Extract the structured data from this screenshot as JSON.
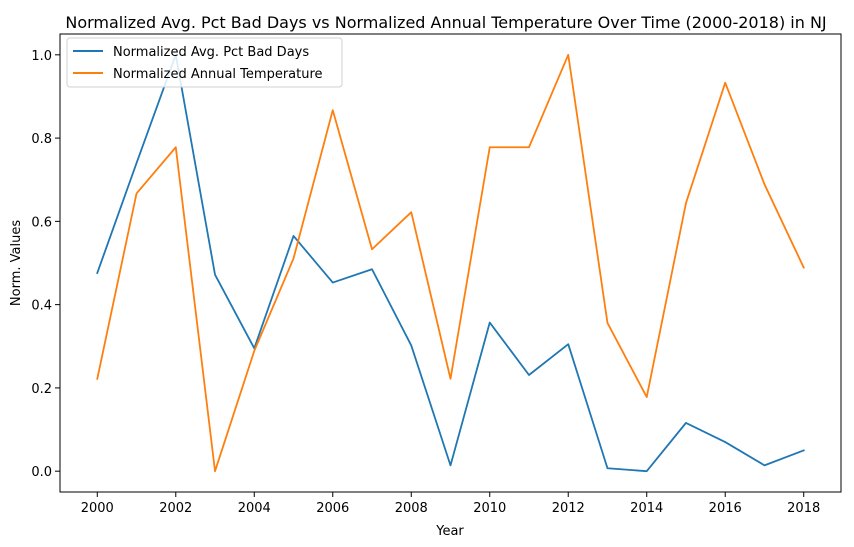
{
  "chart_data": {
    "type": "line",
    "title": "Normalized Avg. Pct Bad Days vs Normalized Annual Temperature Over Time (2000-2018) in NJ",
    "xlabel": "Year",
    "ylabel": "Norm. Values",
    "x": [
      2000,
      2001,
      2002,
      2003,
      2004,
      2005,
      2006,
      2007,
      2008,
      2009,
      2010,
      2011,
      2012,
      2013,
      2014,
      2015,
      2016,
      2017,
      2018
    ],
    "xlim": [
      1999.05,
      2018.95
    ],
    "ylim": [
      -0.05,
      1.05
    ],
    "xticks": [
      "2000",
      "2002",
      "2004",
      "2006",
      "2008",
      "2010",
      "2012",
      "2014",
      "2016",
      "2018"
    ],
    "yticks": [
      "0.0",
      "0.2",
      "0.4",
      "0.6",
      "0.8",
      "1.0"
    ],
    "grid": false,
    "legend_position": "upper-left",
    "series": [
      {
        "name": "Normalized Avg. Pct Bad Days",
        "color": "#1f77b4",
        "values": [
          0.476,
          0.74,
          1.0,
          0.472,
          0.295,
          0.565,
          0.453,
          0.485,
          0.302,
          0.014,
          0.357,
          0.231,
          0.305,
          0.007,
          0.0,
          0.116,
          0.07,
          0.014,
          0.05
        ]
      },
      {
        "name": "Normalized Annual Temperature",
        "color": "#ff7f0e",
        "values": [
          0.222,
          0.667,
          0.778,
          0.0,
          0.289,
          0.511,
          0.867,
          0.533,
          0.622,
          0.222,
          0.778,
          0.778,
          1.0,
          0.356,
          0.178,
          0.644,
          0.933,
          0.689,
          0.489
        ]
      }
    ]
  }
}
